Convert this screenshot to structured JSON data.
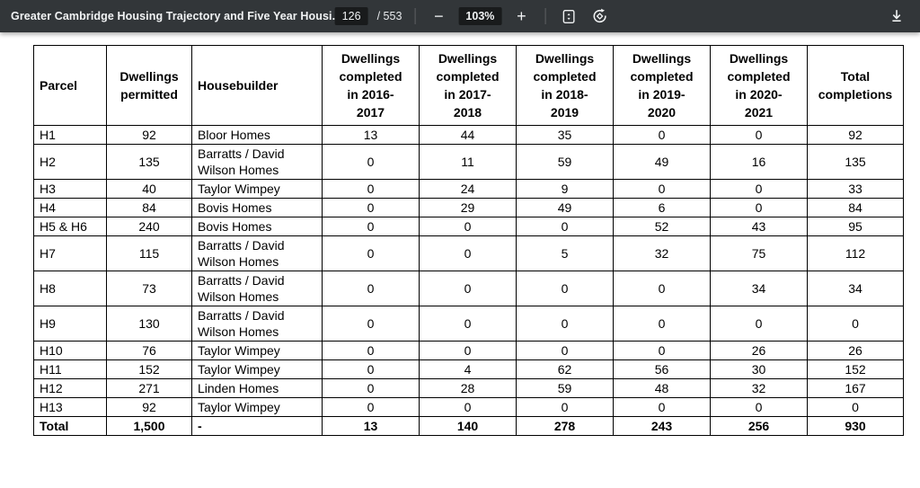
{
  "toolbar": {
    "title": "Greater Cambridge Housing Trajectory and Five Year Housi...",
    "page_current": "126",
    "page_total_label": "/ 553",
    "zoom_out_symbol": "−",
    "zoom_level": "103%",
    "zoom_in_symbol": "+",
    "icons": {
      "fit_page": "fit-to-page-icon",
      "rotate": "rotate-counterclockwise-icon",
      "download": "download-icon"
    },
    "colors": {
      "toolbar_bg": "#323639",
      "input_bg": "#191b1c",
      "icon_color": "#f1f3f4"
    }
  },
  "table": {
    "headers": [
      "Parcel",
      "Dwellings\npermitted",
      "Housebuilder",
      "Dwellings\ncompleted\nin 2016-\n2017",
      "Dwellings\ncompleted\nin 2017-\n2018",
      "Dwellings\ncompleted\nin 2018-\n2019",
      "Dwellings\ncompleted\nin 2019-\n2020",
      "Dwellings\ncompleted\nin 2020-\n2021",
      "Total\ncompletions"
    ],
    "rows": [
      {
        "cells": [
          "H1",
          "92",
          "Bloor Homes",
          "13",
          "44",
          "35",
          "0",
          "0",
          "92"
        ]
      },
      {
        "cells": [
          "H2",
          "135",
          "Barratts / David Wilson Homes",
          "0",
          "11",
          "59",
          "49",
          "16",
          "135"
        ]
      },
      {
        "cells": [
          "H3",
          "40",
          "Taylor Wimpey",
          "0",
          "24",
          "9",
          "0",
          "0",
          "33"
        ]
      },
      {
        "cells": [
          "H4",
          "84",
          "Bovis Homes",
          "0",
          "29",
          "49",
          "6",
          "0",
          "84"
        ]
      },
      {
        "cells": [
          "H5 & H6",
          "240",
          "Bovis Homes",
          "0",
          "0",
          "0",
          "52",
          "43",
          "95"
        ]
      },
      {
        "cells": [
          "H7",
          "115",
          "Barratts / David Wilson Homes",
          "0",
          "0",
          "5",
          "32",
          "75",
          "112"
        ]
      },
      {
        "cells": [
          "H8",
          "73",
          "Barratts / David Wilson Homes",
          "0",
          "0",
          "0",
          "0",
          "34",
          "34"
        ]
      },
      {
        "cells": [
          "H9",
          "130",
          "Barratts / David Wilson Homes",
          "0",
          "0",
          "0",
          "0",
          "0",
          "0"
        ]
      },
      {
        "cells": [
          "H10",
          "76",
          "Taylor Wimpey",
          "0",
          "0",
          "0",
          "0",
          "26",
          "26"
        ]
      },
      {
        "cells": [
          "H11",
          "152",
          "Taylor Wimpey",
          "0",
          "4",
          "62",
          "56",
          "30",
          "152"
        ]
      },
      {
        "cells": [
          "H12",
          "271",
          "Linden Homes",
          "0",
          "28",
          "59",
          "48",
          "32",
          "167"
        ]
      },
      {
        "cells": [
          "H13",
          "92",
          "Taylor Wimpey",
          "0",
          "0",
          "0",
          "0",
          "0",
          "0"
        ]
      }
    ],
    "total_row": {
      "cells": [
        "Total",
        "1,500",
        "-",
        "13",
        "140",
        "278",
        "243",
        "256",
        "930"
      ]
    }
  }
}
